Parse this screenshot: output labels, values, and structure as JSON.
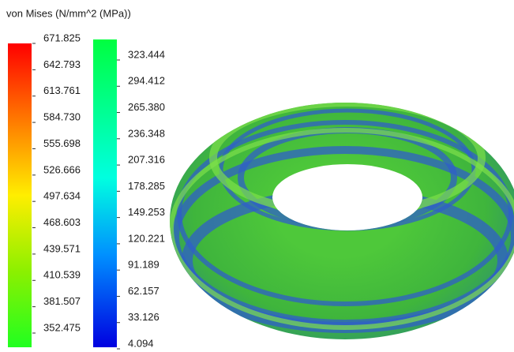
{
  "title": "von Mises (N/mm^2 (MPa))",
  "legend": {
    "left_scale": [
      "671.825",
      "642.793",
      "613.761",
      "584.730",
      "555.698",
      "526.666",
      "497.634",
      "468.603",
      "439.571",
      "410.539",
      "381.507",
      "352.475"
    ],
    "right_scale": [
      "323.444",
      "294.412",
      "265.380",
      "236.348",
      "207.316",
      "178.285",
      "149.253",
      "120.221",
      "91.189",
      "62.157",
      "33.126",
      "4.094"
    ]
  }
}
